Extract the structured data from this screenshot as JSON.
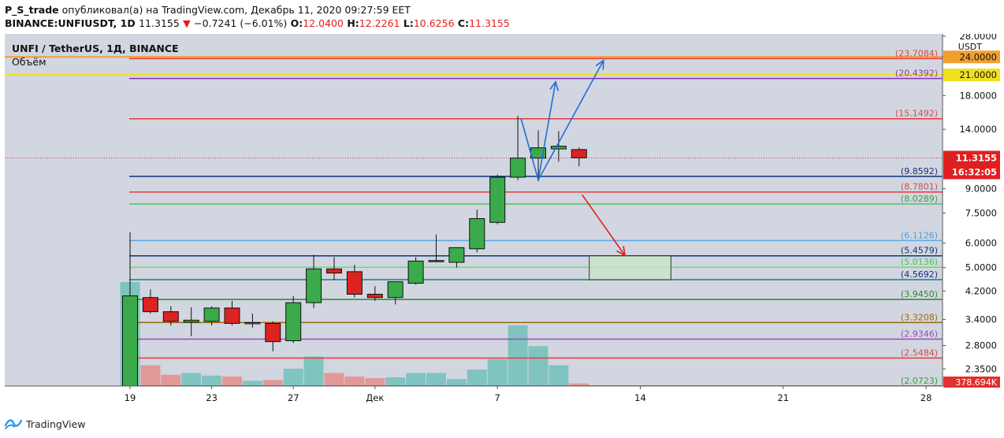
{
  "header": {
    "user": "P_S_trade",
    "published": "опубликовал(а) на TradingView.com, Декабрь 11, 2020 09:27:59 EET",
    "symbol": "BINANCE:UNFIUSDT, 1D",
    "price": "11.3155",
    "change_arrow": "▼",
    "change": "−0.7241 (−6.01%)",
    "o_label": "O:",
    "o_val": "12.0400",
    "h_label": "H:",
    "h_val": "12.2261",
    "l_label": "L:",
    "l_val": "10.6256",
    "c_label": "C:",
    "c_val": "11.3155"
  },
  "legend": {
    "title": "UNFI / TetherUS, 1Д, BINANCE",
    "volume": "Объём"
  },
  "footer": {
    "brand": "TradingView"
  },
  "colors": {
    "bull": "#3aaa4a",
    "bear": "#dd2222",
    "vol_bull": "#7fc4c0",
    "vol_bear": "#e39898",
    "background": "#d2d6e0",
    "arrow_blue": "#1e6fd9",
    "arrow_red": "#e02020"
  },
  "chart_data": {
    "type": "candlestick",
    "y_scale": "log",
    "ylim": [
      2.07,
      28.0
    ],
    "price_axis_unit": "USDT",
    "y_ticks": [
      "28.0000",
      "24.0000",
      "21.0000",
      "18.0000",
      "14.0000",
      "11.3155",
      "9.0000",
      "7.5000",
      "6.0000",
      "5.0000",
      "4.2000",
      "3.4000",
      "2.8000",
      "2.3500"
    ],
    "x_ticks": [
      {
        "label": "19",
        "day": 0
      },
      {
        "label": "23",
        "day": 4
      },
      {
        "label": "27",
        "day": 8
      },
      {
        "label": "Дек",
        "day": 12
      },
      {
        "label": "7",
        "day": 18
      },
      {
        "label": "14",
        "day": 25
      },
      {
        "label": "21",
        "day": 32
      },
      {
        "label": "28",
        "day": 39
      }
    ],
    "candles": [
      {
        "o": 2.07,
        "h": 6.5,
        "l": 2.07,
        "c": 4.05,
        "v": 6.0
      },
      {
        "o": 4.0,
        "h": 4.25,
        "l": 3.55,
        "c": 3.6,
        "v": 1.2
      },
      {
        "o": 3.6,
        "h": 3.75,
        "l": 3.25,
        "c": 3.35,
        "v": 0.65
      },
      {
        "o": 3.33,
        "h": 3.72,
        "l": 3.0,
        "c": 3.38,
        "v": 0.75
      },
      {
        "o": 3.35,
        "h": 3.75,
        "l": 3.25,
        "c": 3.7,
        "v": 0.6
      },
      {
        "o": 3.7,
        "h": 3.9,
        "l": 3.25,
        "c": 3.3,
        "v": 0.55
      },
      {
        "o": 3.3,
        "h": 3.55,
        "l": 3.2,
        "c": 3.32,
        "v": 0.3
      },
      {
        "o": 3.3,
        "h": 3.35,
        "l": 2.68,
        "c": 2.88,
        "v": 0.35
      },
      {
        "o": 2.9,
        "h": 4.05,
        "l": 2.85,
        "c": 3.85,
        "v": 1.0
      },
      {
        "o": 3.85,
        "h": 5.5,
        "l": 3.7,
        "c": 4.95,
        "v": 1.7
      },
      {
        "o": 4.95,
        "h": 5.4,
        "l": 4.55,
        "c": 4.8,
        "v": 0.75
      },
      {
        "o": 4.85,
        "h": 5.1,
        "l": 4.0,
        "c": 4.1,
        "v": 0.55
      },
      {
        "o": 4.1,
        "h": 4.35,
        "l": 3.9,
        "c": 4.0,
        "v": 0.45
      },
      {
        "o": 4.0,
        "h": 4.5,
        "l": 3.8,
        "c": 4.5,
        "v": 0.5
      },
      {
        "o": 4.45,
        "h": 5.4,
        "l": 4.4,
        "c": 5.25,
        "v": 0.75
      },
      {
        "o": 5.25,
        "h": 6.4,
        "l": 5.2,
        "c": 5.27,
        "v": 0.75
      },
      {
        "o": 5.2,
        "h": 5.8,
        "l": 5.0,
        "c": 5.8,
        "v": 0.4
      },
      {
        "o": 5.75,
        "h": 7.7,
        "l": 5.6,
        "c": 7.2,
        "v": 0.95
      },
      {
        "o": 7.0,
        "h": 10.0,
        "l": 6.9,
        "c": 9.8,
        "v": 1.55
      },
      {
        "o": 9.8,
        "h": 15.5,
        "l": 9.6,
        "c": 11.3,
        "v": 3.5
      },
      {
        "o": 11.3,
        "h": 13.9,
        "l": 9.5,
        "c": 12.2,
        "v": 2.3
      },
      {
        "o": 12.1,
        "h": 13.8,
        "l": 11.0,
        "c": 12.35,
        "v": 1.2
      },
      {
        "o": 12.04,
        "h": 12.23,
        "l": 10.63,
        "c": 11.32,
        "v": 0.15
      }
    ],
    "levels": [
      {
        "price": 23.7084,
        "label": "(23.7084)",
        "color": "#e63a3a",
        "label_color": "#d84a4a"
      },
      {
        "price": 20.4392,
        "label": "(20.4392)",
        "color": "#8a2fb0",
        "label_color": "#8a3fb0"
      },
      {
        "price": 15.1492,
        "label": "(15.1492)",
        "color": "#e63a3a",
        "label_color": "#d84a4a"
      },
      {
        "price": 9.8592,
        "label": "(9.8592)",
        "color": "#12327a",
        "label_color": "#12327a"
      },
      {
        "price": 8.7801,
        "label": "(8.7801)",
        "color": "#e63a3a",
        "label_color": "#d84a4a"
      },
      {
        "price": 8.0289,
        "label": "(8.0289)",
        "color": "#55c065",
        "label_color": "#35a045"
      },
      {
        "price": 6.1126,
        "label": "(6.1126)",
        "color": "#5aaae6",
        "label_color": "#4aa0e0"
      },
      {
        "price": 5.4579,
        "label": "(5.4579)",
        "color": "#12327a",
        "label_color": "#12327a"
      },
      {
        "price": 5.0136,
        "label": "(5.0136)",
        "color": "#66e066",
        "label_color": "#44cc44"
      },
      {
        "price": 4.5692,
        "label": "(4.5692)",
        "color": "#168080",
        "label_color": "#12327a"
      },
      {
        "price": 3.945,
        "label": "(3.9450)",
        "color": "#2a8a2a",
        "label_color": "#2a8a2a"
      },
      {
        "price": 3.3208,
        "label": "(3.3208)",
        "color": "#9a6a10",
        "label_color": "#9a6a10"
      },
      {
        "price": 2.9346,
        "label": "(2.9346)",
        "color": "#9a4ac0",
        "label_color": "#9a4ac0"
      },
      {
        "price": 2.5484,
        "label": "(2.5484)",
        "color": "#e63a3a",
        "label_color": "#d84a4a"
      },
      {
        "price": 2.0723,
        "label": "(2.0723)",
        "color": "#55c065",
        "label_color": "#35a045"
      }
    ],
    "horizontal_bands": [
      {
        "price": 24.0,
        "color": "#f0a030",
        "label": "24.0000"
      },
      {
        "price": 21.0,
        "color": "#f0e020",
        "label": "21.0000"
      }
    ],
    "current_price": {
      "value": "11.3155",
      "countdown": "16:32:05",
      "color": "#e02020"
    },
    "volume_last": {
      "value": "378.694K"
    },
    "target_box": {
      "day_start": 22.5,
      "day_end": 26.5,
      "top": 5.4579,
      "bottom": 4.5692
    }
  }
}
